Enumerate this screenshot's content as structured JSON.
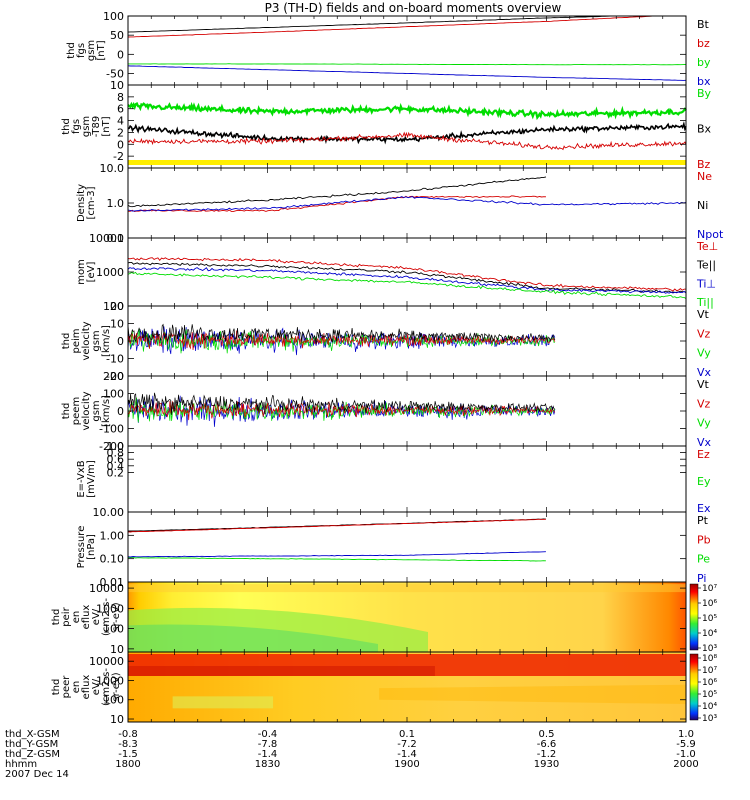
{
  "title": "P3 (TH-D) fields and on-board moments overview",
  "colors": {
    "black": "#000000",
    "red": "#d40000",
    "green": "#00dd00",
    "blue": "#0000cc",
    "yellow": "#ffee00"
  },
  "panels": [
    {
      "label": [
        "thd",
        "fgs",
        "gsm",
        "[nT]"
      ],
      "scale": "linear",
      "ylim": [
        -80,
        100
      ],
      "ticks": [
        {
          "v": 100,
          "t": "100"
        },
        {
          "v": 50,
          "t": "50"
        },
        {
          "v": 0,
          "t": "0"
        },
        {
          "v": -50,
          "t": "-50"
        }
      ],
      "legend": [
        {
          "t": "Bt",
          "c": "black"
        },
        {
          "t": "bz",
          "c": "red"
        },
        {
          "t": "by",
          "c": "green"
        },
        {
          "t": "bx",
          "c": "blue"
        }
      ]
    },
    {
      "label": [
        "thd",
        "fgs",
        "gsm",
        "-T89",
        "[nT]"
      ],
      "scale": "linear",
      "ylim": [
        -4,
        10
      ],
      "ticks": [
        {
          "v": 10,
          "t": "10"
        },
        {
          "v": 8,
          "t": "8"
        },
        {
          "v": 6,
          "t": "6"
        },
        {
          "v": 4,
          "t": "4"
        },
        {
          "v": 2,
          "t": "2"
        },
        {
          "v": 0,
          "t": "0"
        },
        {
          "v": -2,
          "t": "-2"
        }
      ],
      "legend": [
        {
          "t": "By",
          "c": "green"
        },
        {
          "t": "Bx",
          "c": "black"
        },
        {
          "t": "Bz",
          "c": "red"
        }
      ]
    },
    {
      "label": [
        "Density",
        "[cm-3]"
      ],
      "scale": "log",
      "ylim": [
        0.1,
        10
      ],
      "ticks": [
        {
          "v": 10,
          "t": "10.0"
        },
        {
          "v": 1,
          "t": "1.0"
        },
        {
          "v": 0.1,
          "t": "0.1"
        }
      ],
      "legend": [
        {
          "t": "Ne",
          "c": "red"
        },
        {
          "t": "Ni",
          "c": "black"
        },
        {
          "t": "Npot",
          "c": "blue"
        }
      ]
    },
    {
      "label": [
        "mom",
        "[eV]"
      ],
      "scale": "log",
      "ylim": [
        100,
        10000
      ],
      "ticks": [
        {
          "v": 10000,
          "t": "10000"
        },
        {
          "v": 1000,
          "t": "1000"
        },
        {
          "v": 100,
          "t": "100"
        }
      ],
      "legend": [
        {
          "t": "Te⊥",
          "c": "red"
        },
        {
          "t": "Te||",
          "c": "black"
        },
        {
          "t": "Ti⊥",
          "c": "blue"
        },
        {
          "t": "Ti||",
          "c": "green"
        }
      ]
    },
    {
      "label": [
        "thd",
        "peim",
        "velocity",
        "gsm",
        "[km/s]"
      ],
      "scale": "linear",
      "ylim": [
        -20,
        20
      ],
      "ticks": [
        {
          "v": 20,
          "t": "20"
        },
        {
          "v": 10,
          "t": "10"
        },
        {
          "v": 0,
          "t": "0"
        },
        {
          "v": -10,
          "t": "-10"
        },
        {
          "v": -20,
          "t": "-20"
        }
      ],
      "legend": [
        {
          "t": "Vt",
          "c": "black"
        },
        {
          "t": "Vz",
          "c": "red"
        },
        {
          "t": "Vy",
          "c": "green"
        },
        {
          "t": "Vx",
          "c": "blue"
        }
      ]
    },
    {
      "label": [
        "thd",
        "peem",
        "velocity",
        "gsm",
        "[km/s]"
      ],
      "scale": "linear",
      "ylim": [
        -200,
        200
      ],
      "ticks": [
        {
          "v": 200,
          "t": "200"
        },
        {
          "v": 100,
          "t": "100"
        },
        {
          "v": 0,
          "t": "0"
        },
        {
          "v": -100,
          "t": "-100"
        },
        {
          "v": -200,
          "t": "-200"
        }
      ],
      "legend": [
        {
          "t": "Vt",
          "c": "black"
        },
        {
          "t": "Vz",
          "c": "red"
        },
        {
          "t": "Vy",
          "c": "green"
        },
        {
          "t": "Vx",
          "c": "blue"
        }
      ]
    },
    {
      "label": [
        "E=-VxB",
        "[mV/m]"
      ],
      "scale": "linear",
      "ylim": [
        -1,
        1
      ],
      "ticks": [
        {
          "v": 1,
          "t": "1.0"
        },
        {
          "v": 0.8,
          "t": "0.8"
        },
        {
          "v": 0.6,
          "t": "0.6"
        },
        {
          "v": 0.4,
          "t": "0.4"
        },
        {
          "v": 0.2,
          "t": "0.2"
        }
      ],
      "legend": [
        {
          "t": "Ez",
          "c": "red"
        },
        {
          "t": "Ey",
          "c": "green"
        },
        {
          "t": "Ex",
          "c": "blue"
        }
      ]
    },
    {
      "label": [
        "Pressure",
        "[nPa]"
      ],
      "scale": "log",
      "ylim": [
        0.01,
        10
      ],
      "ticks": [
        {
          "v": 10,
          "t": "10.00"
        },
        {
          "v": 1,
          "t": "1.00"
        },
        {
          "v": 0.1,
          "t": "0.10"
        },
        {
          "v": 0.01,
          "t": "0.01"
        }
      ],
      "legend": [
        {
          "t": "Pt",
          "c": "black"
        },
        {
          "t": "Pb",
          "c": "red"
        },
        {
          "t": "Pe",
          "c": "green"
        },
        {
          "t": "Pi",
          "c": "blue"
        }
      ]
    },
    {
      "label": [
        "thd",
        "peir",
        "en",
        "eflux",
        "eV/",
        "(cm2-s-",
        "sr-eV)"
      ],
      "scale": "log",
      "ylim": [
        7,
        20000
      ],
      "ticks": [
        {
          "v": 10000,
          "t": "10000"
        },
        {
          "v": 1000,
          "t": "1000"
        },
        {
          "v": 100,
          "t": "100"
        },
        {
          "v": 10,
          "t": "10"
        }
      ],
      "cbar": [
        "10⁷",
        "10⁶",
        "10⁵",
        "10⁴",
        "10³"
      ]
    },
    {
      "label": [
        "thd",
        "peer",
        "en",
        "eflux",
        "eV/",
        "(cm2-s-",
        "sr-eV)"
      ],
      "scale": "log",
      "ylim": [
        7,
        30000
      ],
      "ticks": [
        {
          "v": 10000,
          "t": "10000"
        },
        {
          "v": 1000,
          "t": "1000"
        },
        {
          "v": 100,
          "t": "100"
        },
        {
          "v": 10,
          "t": "10"
        }
      ],
      "cbar": [
        "10⁸",
        "10⁷",
        "10⁶",
        "10⁵",
        "10⁴",
        "10³"
      ]
    }
  ],
  "time_axis": {
    "labels": [
      "thd_X-GSM",
      "thd_Y-GSM",
      "thd_Z-GSM",
      "hhmm",
      "2007 Dec 14"
    ],
    "rows": [
      [
        "-0.8",
        "-0.4",
        "0.1",
        "0.5",
        "1.0"
      ],
      [
        "-8.3",
        "-7.8",
        "-7.2",
        "-6.6",
        "-5.9"
      ],
      [
        "-1.5",
        "-1.4",
        "-1.4",
        "-1.2",
        "-1.0"
      ],
      [
        "1800",
        "1830",
        "1900",
        "1930",
        "2000"
      ]
    ]
  },
  "chart_data": {
    "type": "line",
    "title": "P3 (TH-D) fields and on-board moments overview",
    "x": [
      "1800",
      "1830",
      "1900",
      "1930",
      "2000"
    ],
    "xlabel": "hhmm",
    "date": "2007 Dec 14",
    "series": [
      {
        "name": "Bt",
        "panel": 0,
        "values": [
          58,
          70,
          82,
          95,
          105
        ]
      },
      {
        "name": "bz",
        "panel": 0,
        "values": [
          45,
          58,
          72,
          86,
          104
        ]
      },
      {
        "name": "by",
        "panel": 0,
        "values": [
          -25,
          -25,
          -26,
          -27,
          -27
        ]
      },
      {
        "name": "bx",
        "panel": 0,
        "values": [
          -30,
          -40,
          -50,
          -60,
          -68
        ]
      },
      {
        "name": "By",
        "panel": 1,
        "values": [
          6.5,
          5.5,
          6,
          5,
          5.5
        ]
      },
      {
        "name": "Bx",
        "panel": 1,
        "values": [
          2.8,
          1,
          0.8,
          2.5,
          3
        ]
      },
      {
        "name": "Bz",
        "panel": 1,
        "values": [
          0.5,
          0.5,
          1.5,
          -0.5,
          0.2
        ]
      },
      {
        "name": "Ne",
        "panel": 2,
        "values": [
          0.6,
          0.6,
          1.5,
          1.5,
          null
        ]
      },
      {
        "name": "Ni",
        "panel": 2,
        "values": [
          0.8,
          1.2,
          2.2,
          5.5,
          null
        ]
      },
      {
        "name": "Npot",
        "panel": 2,
        "values": [
          0.6,
          0.7,
          1.5,
          0.9,
          1.0
        ]
      },
      {
        "name": "Te⊥",
        "panel": 3,
        "values": [
          2500,
          2200,
          1300,
          400,
          300
        ]
      },
      {
        "name": "Te||",
        "panel": 3,
        "values": [
          1800,
          1500,
          1000,
          330,
          260
        ]
      },
      {
        "name": "Ti⊥",
        "panel": 3,
        "values": [
          1300,
          1100,
          700,
          300,
          250
        ]
      },
      {
        "name": "Ti||",
        "panel": 3,
        "values": [
          900,
          700,
          500,
          260,
          180
        ]
      },
      {
        "name": "Pt",
        "panel": 7,
        "values": [
          1.5,
          2.2,
          3.3,
          5,
          null
        ]
      },
      {
        "name": "Pb",
        "panel": 7,
        "values": [
          1.4,
          2.1,
          3.2,
          4.9,
          null
        ]
      },
      {
        "name": "Pe",
        "panel": 7,
        "values": [
          0.11,
          0.1,
          0.09,
          0.08,
          null
        ]
      },
      {
        "name": "Pi",
        "panel": 7,
        "values": [
          0.12,
          0.13,
          0.14,
          0.2,
          null
        ]
      }
    ]
  }
}
